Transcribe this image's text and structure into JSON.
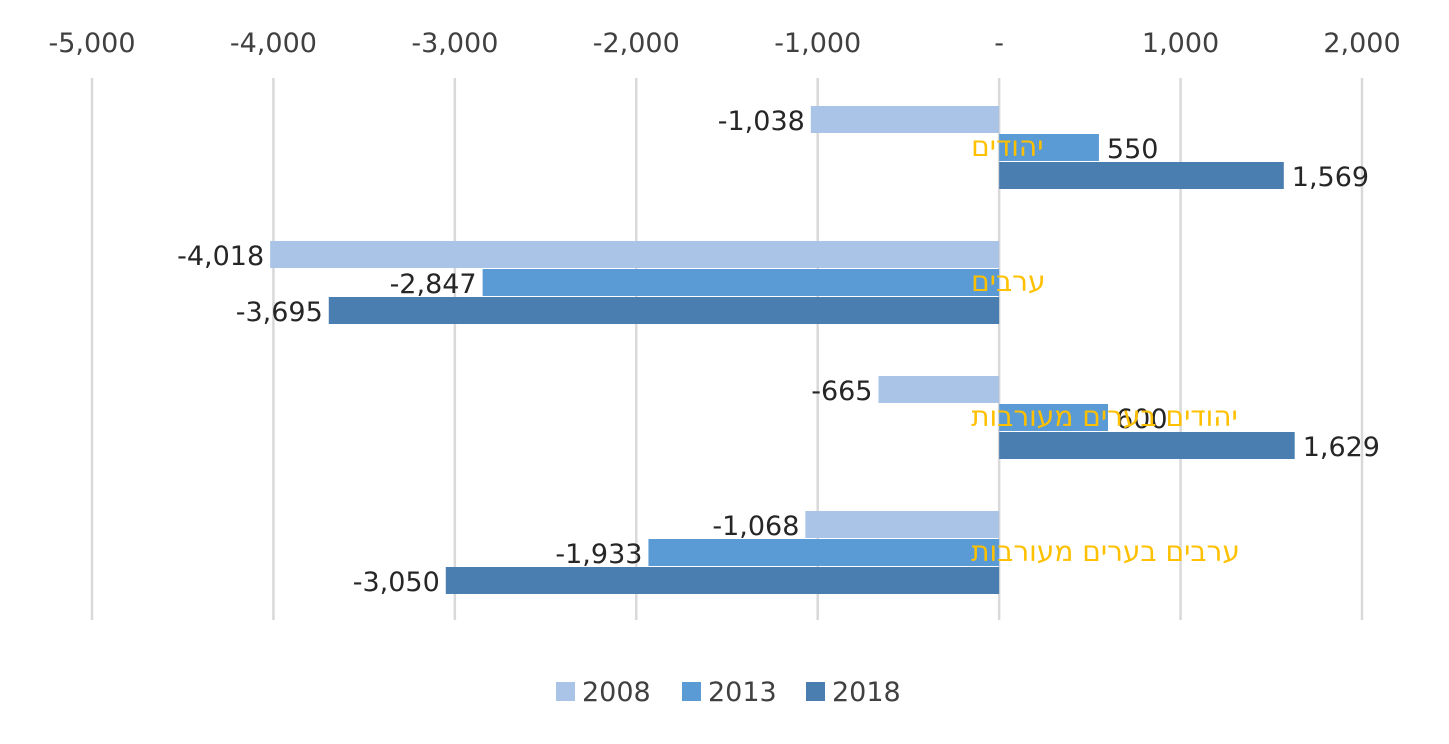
{
  "chart_data": {
    "type": "bar",
    "orientation": "horizontal",
    "categories": [
      "יהודים",
      "ערבים",
      "יהודים בערים מעורבות",
      "ערבים בערים מעורבות"
    ],
    "series": [
      {
        "name": "2008",
        "color": "#A9C4E6",
        "values": [
          -1038,
          -4018,
          -665,
          -1068
        ],
        "labels": [
          "-1,038",
          "-4,018",
          "-665",
          "-1,068"
        ]
      },
      {
        "name": "2013",
        "color": "#5B9BD5",
        "values": [
          550,
          -2847,
          600,
          -1933
        ],
        "labels": [
          "550",
          "-2,847",
          "600",
          "-1,933"
        ]
      },
      {
        "name": "2018",
        "color": "#4A7EB0",
        "values": [
          1569,
          -3695,
          1629,
          -3050
        ],
        "labels": [
          "1,569",
          "-3,695",
          "1,629",
          "-3,050"
        ]
      }
    ],
    "x_ticks": [
      -5000,
      -4000,
      -3000,
      -2000,
      -1000,
      0,
      1000,
      2000
    ],
    "x_tick_labels": [
      "-5,000",
      "-4,000",
      "-3,000",
      "-2,000",
      "-1,000",
      "-",
      "1,000",
      "2,000"
    ],
    "xlim": [
      -5000,
      2000
    ],
    "grid": true,
    "legend_position": "bottom",
    "category_label_color": "#FFC000"
  }
}
